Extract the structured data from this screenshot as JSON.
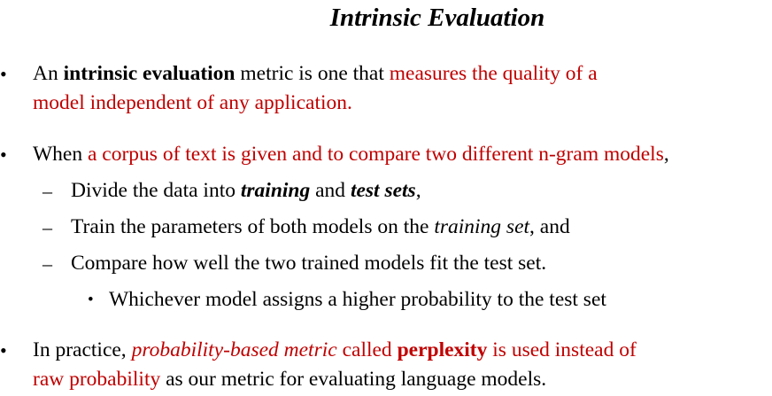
{
  "title": "Intrinsic Evaluation",
  "markers": {
    "bullet": "•",
    "dash": "–"
  },
  "bullet1": {
    "s1": "An ",
    "s2": "intrinsic evaluation",
    "s3": " metric is one that ",
    "s4": "measures the quality of a",
    "s5": "model independent of any application."
  },
  "bullet2": {
    "s1": "When ",
    "s2": "a corpus of text is given and to compare two different n-gram models",
    "s3": ",",
    "sub1": {
      "s1": "Divide the data into ",
      "s2": "training",
      "s3": " and ",
      "s4": "test sets",
      "s5": ","
    },
    "sub2": {
      "s1": "Train the parameters of both models on the ",
      "s2": "training set",
      "s3": ", and"
    },
    "sub3": {
      "s1": "Compare how well the two trained models fit the test set."
    },
    "subsub1": {
      "s1": "Whichever model assigns a higher probability to the test set"
    }
  },
  "bullet3": {
    "s1": "In practice, ",
    "s2": "probability-based metric",
    "s3": " called ",
    "s4": "perplexity",
    "s5": " is used instead of",
    "s6": "raw probability",
    "s7": " as our metric for evaluating language models."
  },
  "colors": {
    "text": "#000000",
    "highlight": "#c00000",
    "background": "#ffffff"
  }
}
